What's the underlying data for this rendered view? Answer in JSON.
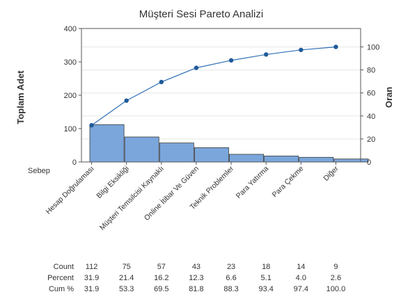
{
  "colors": {
    "bar_fill": "#7aa6db",
    "bar_stroke": "#3a3a3a",
    "line": "#2f6fb5",
    "marker": "#1f5a99",
    "grid": "#e6e6e6",
    "axis": "#555555"
  },
  "chart_data": {
    "type": "bar",
    "title": "Müşteri Sesi Pareto Analizi",
    "ylabel": "Toplam Adet",
    "y2label": "Oran",
    "xlabel": "Sebep",
    "ylim": [
      0,
      400
    ],
    "yticks": [
      0,
      100,
      200,
      300,
      400
    ],
    "y2lim": [
      0,
      116
    ],
    "y2ticks": [
      0,
      20,
      40,
      60,
      80,
      100
    ],
    "grid": true,
    "categories": [
      "Hesap Doğrulaması",
      "Bilgi Eksikliği",
      "Müşteri Temsilcisi Kaynaklı",
      "Online İtibar Ve Güven",
      "Teknik Problemler",
      "Para Yatırma",
      "Para Çekme",
      "Diğer"
    ],
    "series": [
      {
        "type": "bar",
        "values": [
          112,
          75,
          57,
          43,
          23,
          18,
          14,
          9
        ]
      },
      {
        "type": "line",
        "axis": "right",
        "values": [
          31.9,
          53.3,
          69.5,
          81.8,
          88.3,
          93.4,
          97.4,
          100.0
        ]
      }
    ],
    "table": {
      "rows": [
        {
          "label": "Count",
          "values": [
            "112",
            "75",
            "57",
            "43",
            "23",
            "18",
            "14",
            "9"
          ]
        },
        {
          "label": "Percent",
          "values": [
            "31.9",
            "21.4",
            "16.2",
            "12.3",
            "6.6",
            "5.1",
            "4.0",
            "2.6"
          ]
        },
        {
          "label": "Cum %",
          "values": [
            "31.9",
            "53.3",
            "69.5",
            "81.8",
            "88.3",
            "93.4",
            "97.4",
            "100.0"
          ]
        }
      ]
    }
  }
}
